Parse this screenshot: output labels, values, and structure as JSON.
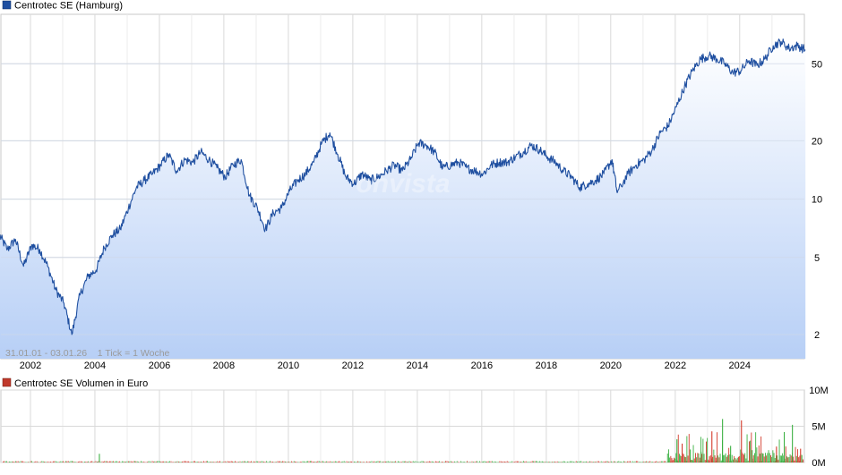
{
  "price_chart": {
    "legend_label": "Centrotec SE (Hamburg)",
    "series_color": "#1f4fa0",
    "info_text": "31.01.01 - 03.01.26    1 Tick = 1 Woche",
    "watermark": "onvista"
  },
  "volume_chart": {
    "legend_label": "Centrotec SE Volumen in Euro",
    "legend_color": "#c0392b",
    "up_color": "#3cb043",
    "down_color": "#d33b2c"
  },
  "chart_data": [
    {
      "type": "area",
      "title": "Centrotec SE (Hamburg)",
      "x_axis": {
        "range": [
          "2001-01-31",
          "2026-01-03"
        ],
        "tick_labels": [
          "2002",
          "2004",
          "2006",
          "2008",
          "2010",
          "2012",
          "2014",
          "2016",
          "2018",
          "2020",
          "2022",
          "2024"
        ]
      },
      "y_axis": {
        "scale": "log",
        "range": [
          1.5,
          90
        ],
        "tick_values": [
          2,
          5,
          10,
          20,
          50
        ],
        "tick_labels": [
          "2",
          "5",
          "10",
          "20",
          "50"
        ],
        "position": "right"
      },
      "grid": true,
      "series": [
        {
          "name": "Centrotec SE (Hamburg)",
          "points": [
            [
              "2001-01",
              6.5
            ],
            [
              "2001-04",
              5.5
            ],
            [
              "2001-07",
              6.2
            ],
            [
              "2001-10",
              4.5
            ],
            [
              "2002-01",
              5.8
            ],
            [
              "2002-04",
              5.5
            ],
            [
              "2002-07",
              4.5
            ],
            [
              "2002-10",
              3.4
            ],
            [
              "2003-01",
              2.9
            ],
            [
              "2003-04",
              2.0
            ],
            [
              "2003-07",
              3.2
            ],
            [
              "2003-10",
              4.0
            ],
            [
              "2004-01",
              4.3
            ],
            [
              "2004-04",
              5.6
            ],
            [
              "2004-07",
              6.5
            ],
            [
              "2004-10",
              7.0
            ],
            [
              "2005-01",
              9.0
            ],
            [
              "2005-04",
              11.5
            ],
            [
              "2005-07",
              12.5
            ],
            [
              "2005-10",
              13.5
            ],
            [
              "2006-01",
              15.0
            ],
            [
              "2006-04",
              17.0
            ],
            [
              "2006-07",
              14.0
            ],
            [
              "2006-10",
              16.0
            ],
            [
              "2007-01",
              15.5
            ],
            [
              "2007-04",
              17.5
            ],
            [
              "2007-07",
              16.0
            ],
            [
              "2007-10",
              14.5
            ],
            [
              "2008-01",
              13.0
            ],
            [
              "2008-04",
              15.0
            ],
            [
              "2008-07",
              16.0
            ],
            [
              "2008-10",
              10.5
            ],
            [
              "2009-01",
              9.0
            ],
            [
              "2009-04",
              7.0
            ],
            [
              "2009-07",
              8.5
            ],
            [
              "2009-10",
              9.0
            ],
            [
              "2010-01",
              11.0
            ],
            [
              "2010-04",
              12.5
            ],
            [
              "2010-07",
              13.5
            ],
            [
              "2010-10",
              15.5
            ],
            [
              "2011-01",
              19.5
            ],
            [
              "2011-04",
              22.0
            ],
            [
              "2011-07",
              17.0
            ],
            [
              "2011-10",
              13.0
            ],
            [
              "2012-01",
              12.0
            ],
            [
              "2012-04",
              13.5
            ],
            [
              "2012-07",
              12.5
            ],
            [
              "2012-10",
              13.0
            ],
            [
              "2013-01",
              14.0
            ],
            [
              "2013-04",
              15.0
            ],
            [
              "2013-07",
              14.0
            ],
            [
              "2013-10",
              16.0
            ],
            [
              "2014-01",
              19.5
            ],
            [
              "2014-04",
              19.0
            ],
            [
              "2014-07",
              17.5
            ],
            [
              "2014-10",
              14.5
            ],
            [
              "2015-01",
              15.0
            ],
            [
              "2015-04",
              15.5
            ],
            [
              "2015-07",
              14.5
            ],
            [
              "2015-10",
              14.0
            ],
            [
              "2016-01",
              13.5
            ],
            [
              "2016-04",
              15.0
            ],
            [
              "2016-07",
              15.5
            ],
            [
              "2016-10",
              15.5
            ],
            [
              "2017-01",
              16.5
            ],
            [
              "2017-04",
              17.5
            ],
            [
              "2017-07",
              19.0
            ],
            [
              "2017-10",
              18.0
            ],
            [
              "2018-01",
              16.5
            ],
            [
              "2018-04",
              15.5
            ],
            [
              "2018-07",
              14.0
            ],
            [
              "2018-10",
              13.0
            ],
            [
              "2019-01",
              11.5
            ],
            [
              "2019-04",
              12.0
            ],
            [
              "2019-07",
              12.5
            ],
            [
              "2019-10",
              13.5
            ],
            [
              "2020-01",
              16.0
            ],
            [
              "2020-03",
              10.8
            ],
            [
              "2020-07",
              13.5
            ],
            [
              "2020-10",
              15.0
            ],
            [
              "2021-01",
              16.0
            ],
            [
              "2021-04",
              18.0
            ],
            [
              "2021-07",
              22.0
            ],
            [
              "2021-10",
              24.0
            ],
            [
              "2022-01",
              30.0
            ],
            [
              "2022-04",
              38.0
            ],
            [
              "2022-07",
              46.0
            ],
            [
              "2022-10",
              53.0
            ],
            [
              "2023-01",
              55.0
            ],
            [
              "2023-04",
              53.0
            ],
            [
              "2023-07",
              50.0
            ],
            [
              "2023-10",
              45.0
            ],
            [
              "2024-01",
              46.0
            ],
            [
              "2024-04",
              52.0
            ],
            [
              "2024-07",
              49.0
            ],
            [
              "2024-10",
              53.0
            ],
            [
              "2025-01",
              62.0
            ],
            [
              "2025-04",
              65.0
            ],
            [
              "2025-07",
              60.0
            ],
            [
              "2025-10",
              62.0
            ],
            [
              "2026-01",
              59.0
            ]
          ]
        }
      ]
    },
    {
      "type": "bar",
      "title": "Centrotec SE Volumen in Euro",
      "y_axis": {
        "range": [
          0,
          10000000
        ],
        "tick_values": [
          0,
          5000000,
          10000000
        ],
        "tick_labels": [
          "0M",
          "5M",
          "10M"
        ],
        "position": "right"
      },
      "grid": true,
      "spikes": [
        [
          "2004-02",
          1200000
        ],
        [
          "2022-01",
          3200000
        ],
        [
          "2022-03",
          2600000
        ],
        [
          "2022-06",
          1800000
        ],
        [
          "2022-10",
          1500000
        ],
        [
          "2023-02",
          4300000
        ],
        [
          "2023-06",
          6000000
        ],
        [
          "2023-09",
          2300000
        ],
        [
          "2024-01",
          5800000
        ],
        [
          "2024-05",
          1700000
        ],
        [
          "2024-09",
          1200000
        ],
        [
          "2025-02",
          2200000
        ],
        [
          "2025-05",
          4200000
        ],
        [
          "2025-08",
          5200000
        ],
        [
          "2025-11",
          1900000
        ]
      ]
    }
  ]
}
